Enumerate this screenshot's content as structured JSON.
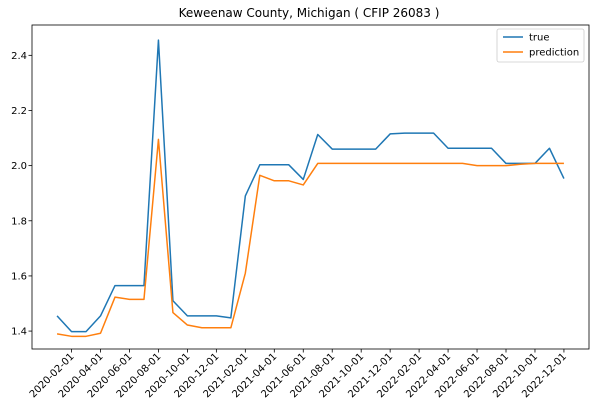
{
  "chart_data": {
    "type": "line",
    "title": "Keweenaw County, Michigan ( CFIP 26083 )",
    "xlabel": "",
    "ylabel": "",
    "x": [
      "2020-01-01",
      "2020-02-01",
      "2020-03-01",
      "2020-04-01",
      "2020-05-01",
      "2020-06-01",
      "2020-07-01",
      "2020-08-01",
      "2020-09-01",
      "2020-10-01",
      "2020-11-01",
      "2020-12-01",
      "2021-01-01",
      "2021-02-01",
      "2021-03-01",
      "2021-04-01",
      "2021-05-01",
      "2021-06-01",
      "2021-07-01",
      "2021-08-01",
      "2021-09-01",
      "2021-10-01",
      "2021-11-01",
      "2021-12-01",
      "2022-01-01",
      "2022-02-01",
      "2022-03-01",
      "2022-04-01",
      "2022-05-01",
      "2022-06-01",
      "2022-07-01",
      "2022-08-01",
      "2022-09-01",
      "2022-10-01",
      "2022-11-01",
      "2022-12-01"
    ],
    "series": [
      {
        "name": "true",
        "color": "#1f77b4",
        "values": [
          1.455,
          1.398,
          1.398,
          1.455,
          1.565,
          1.565,
          1.565,
          2.455,
          1.51,
          1.455,
          1.455,
          1.455,
          1.448,
          1.89,
          2.003,
          2.003,
          2.003,
          1.95,
          2.113,
          2.06,
          2.06,
          2.06,
          2.06,
          2.115,
          2.118,
          2.118,
          2.118,
          2.063,
          2.063,
          2.063,
          2.063,
          2.008,
          2.008,
          2.008,
          2.063,
          1.953
        ]
      },
      {
        "name": "prediction",
        "color": "#ff7f0e",
        "values": [
          1.39,
          1.381,
          1.381,
          1.392,
          1.523,
          1.515,
          1.515,
          2.095,
          1.467,
          1.422,
          1.412,
          1.412,
          1.412,
          1.61,
          1.965,
          1.945,
          1.945,
          1.93,
          2.008,
          2.008,
          2.008,
          2.008,
          2.008,
          2.008,
          2.008,
          2.008,
          2.008,
          2.008,
          2.008,
          2.0,
          2.0,
          2.0,
          2.005,
          2.008,
          2.008,
          2.008
        ]
      }
    ],
    "xticks": [
      "2020-02-01",
      "2020-04-01",
      "2020-06-01",
      "2020-08-01",
      "2020-10-01",
      "2020-12-01",
      "2021-02-01",
      "2021-04-01",
      "2021-06-01",
      "2021-08-01",
      "2021-10-01",
      "2021-12-01",
      "2022-02-01",
      "2022-04-01",
      "2022-06-01",
      "2022-08-01",
      "2022-10-01",
      "2022-12-01"
    ],
    "yticks": [
      "1.4",
      "1.6",
      "1.8",
      "2.0",
      "2.2",
      "2.4"
    ],
    "ylim": [
      1.335,
      2.51
    ],
    "legend_position": "top-right",
    "grid": false
  }
}
